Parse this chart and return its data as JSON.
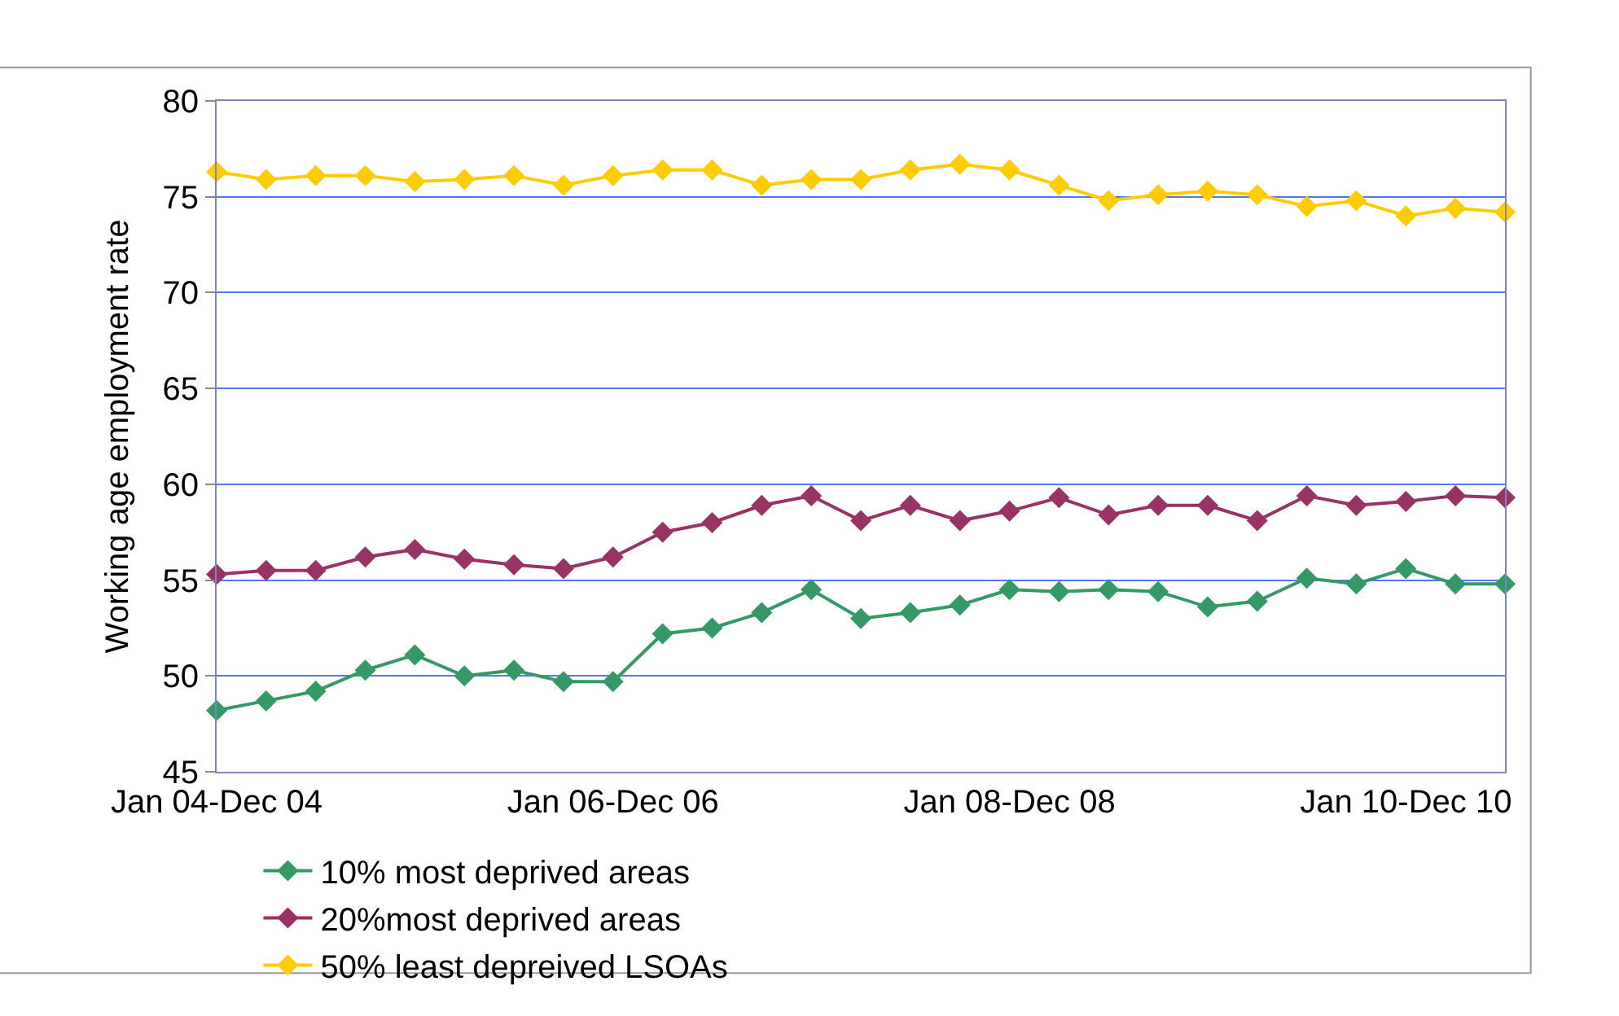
{
  "chart_data": {
    "type": "line",
    "ylabel": "Working age employment rate",
    "categories": [
      "Jan 04-Dec 04",
      null,
      null,
      null,
      null,
      null,
      null,
      null,
      "Jan 06-Dec 06",
      null,
      null,
      null,
      null,
      null,
      null,
      null,
      "Jan 08-Dec 08",
      null,
      null,
      null,
      null,
      null,
      null,
      null,
      "Jan 10-Dec 10",
      null,
      null
    ],
    "series": [
      {
        "name": "10% most deprived areas",
        "color": "#339966",
        "values": [
          48.2,
          48.7,
          49.2,
          50.3,
          51.1,
          50.0,
          50.3,
          49.7,
          49.7,
          52.2,
          52.5,
          53.3,
          54.5,
          53.0,
          53.3,
          53.7,
          54.5,
          54.4,
          54.5,
          54.4,
          53.6,
          53.9,
          55.1,
          54.8,
          55.6,
          54.8,
          54.8
        ]
      },
      {
        "name": "20%most deprived areas",
        "color": "#993366",
        "values": [
          55.3,
          55.5,
          55.5,
          56.2,
          56.6,
          56.1,
          55.8,
          55.6,
          56.2,
          57.5,
          58.0,
          58.9,
          59.4,
          58.1,
          58.9,
          58.1,
          58.6,
          59.3,
          58.4,
          58.9,
          58.9,
          58.1,
          59.4,
          58.9,
          59.1,
          59.4,
          59.3
        ]
      },
      {
        "name": "50% least depreived LSOAs",
        "color": "#ffcc00",
        "values": [
          76.3,
          75.9,
          76.1,
          76.1,
          75.8,
          75.9,
          76.1,
          75.6,
          76.1,
          76.4,
          76.4,
          75.6,
          75.9,
          75.9,
          76.4,
          76.7,
          76.4,
          75.6,
          74.8,
          75.1,
          75.3,
          75.1,
          74.5,
          74.8,
          74.0,
          74.4,
          74.2
        ]
      }
    ],
    "ylim": [
      45,
      80
    ],
    "yticks": [
      45,
      50,
      55,
      60,
      65,
      70,
      75,
      80
    ],
    "grid": "y",
    "legend": "bottom",
    "marker": "diamond",
    "line_style": "solid"
  }
}
